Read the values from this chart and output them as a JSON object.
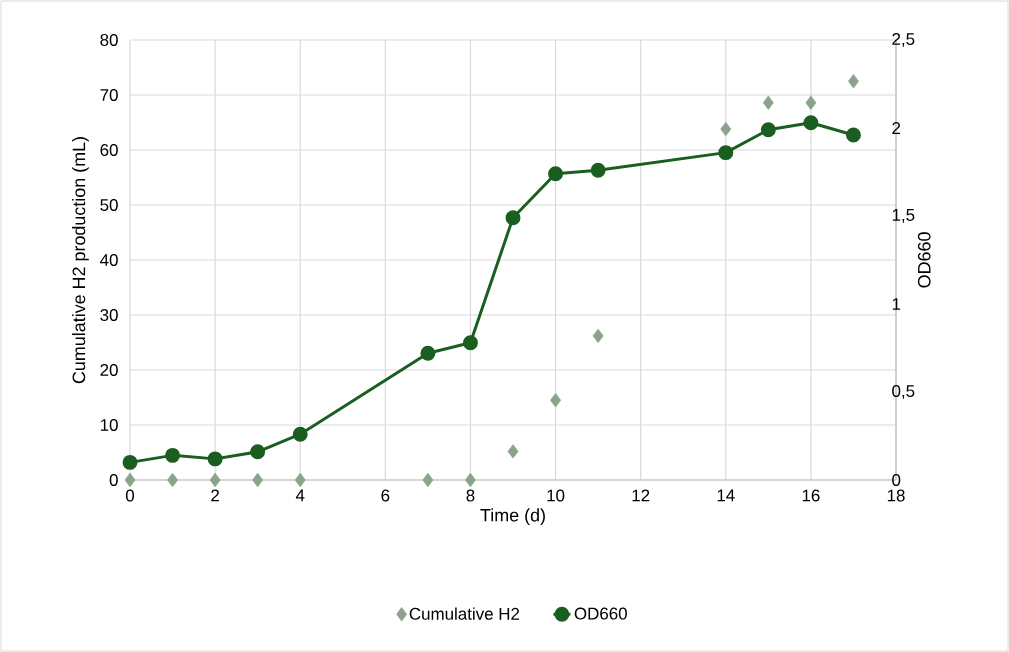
{
  "chart_data": {
    "type": "line",
    "xlabel": "Time (d)",
    "ylabel": "Cumulative H2 production (mL)",
    "y2label": "OD660",
    "x": [
      0,
      1,
      2,
      3,
      4,
      7,
      8,
      9,
      10,
      11,
      14,
      15,
      16,
      17
    ],
    "xlim": [
      0,
      18
    ],
    "xticks": [
      0,
      2,
      4,
      6,
      8,
      10,
      12,
      14,
      16,
      18
    ],
    "ylim": [
      0,
      80
    ],
    "yticks": [
      0,
      10,
      20,
      30,
      40,
      50,
      60,
      70,
      80
    ],
    "y2lim": [
      0,
      2.5
    ],
    "y2ticks": [
      0,
      {
        "value": 0.5,
        "label": "0,5"
      },
      1,
      {
        "value": 1.5,
        "label": "1,5"
      },
      2,
      {
        "value": 2.5,
        "label": "2,5"
      }
    ],
    "grid": true,
    "legend": "bottom",
    "series": [
      {
        "name": "Cumulative H2",
        "type": "scatter",
        "marker": "diamond",
        "color": "#8aa38a",
        "values": [
          0,
          0,
          0,
          0,
          0,
          0,
          0,
          5.2,
          14.5,
          26.2,
          63.8,
          68.6,
          68.6,
          72.5
        ]
      },
      {
        "name": "OD660",
        "marker": "circle",
        "axis": "y2",
        "color": "#1a5e20",
        "values": [
          0.1,
          0.14,
          0.12,
          0.16,
          0.26,
          0.72,
          0.78,
          1.49,
          1.74,
          1.76,
          1.86,
          1.99,
          2.03,
          1.96
        ]
      }
    ]
  }
}
